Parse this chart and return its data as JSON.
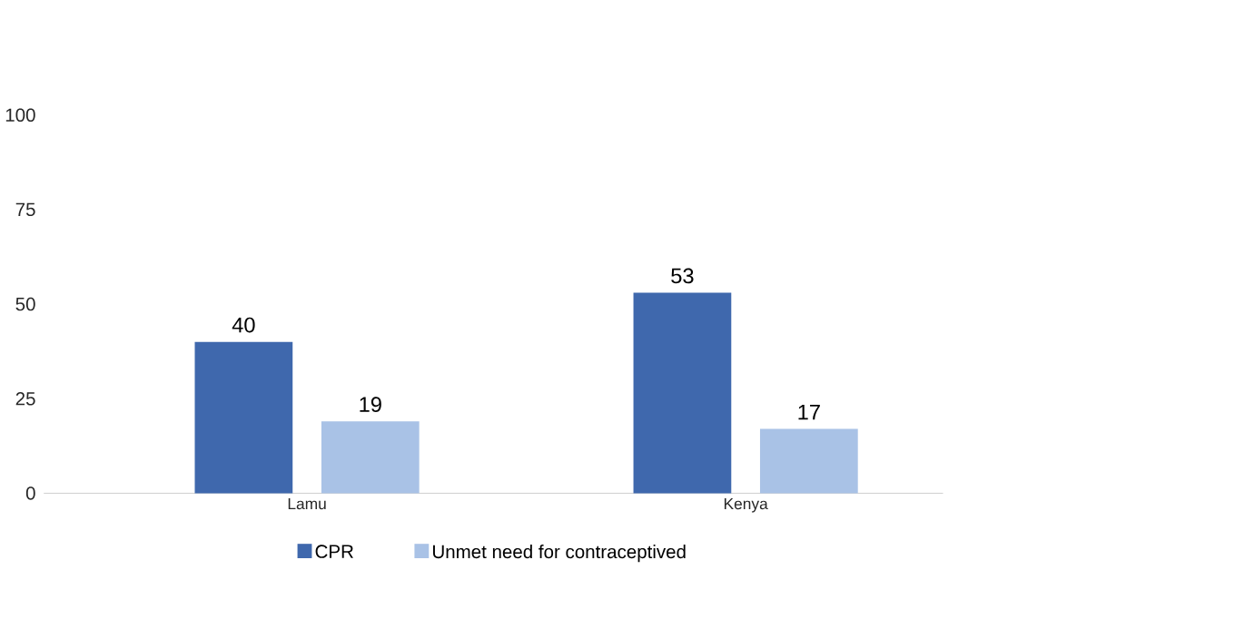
{
  "chart_data": {
    "type": "bar",
    "categories": [
      "Lamu",
      "Kenya"
    ],
    "series": [
      {
        "name": "CPR",
        "color": "#3f68ad",
        "values": [
          40,
          53
        ]
      },
      {
        "name": "Unmet need for contraceptived",
        "color": "#a9c2e6",
        "values": [
          19,
          17
        ]
      }
    ],
    "ylim": [
      0,
      100
    ],
    "yticks": [
      0,
      25,
      50,
      75,
      100
    ],
    "data_labels": true,
    "legend": "bottom",
    "grid": false
  }
}
